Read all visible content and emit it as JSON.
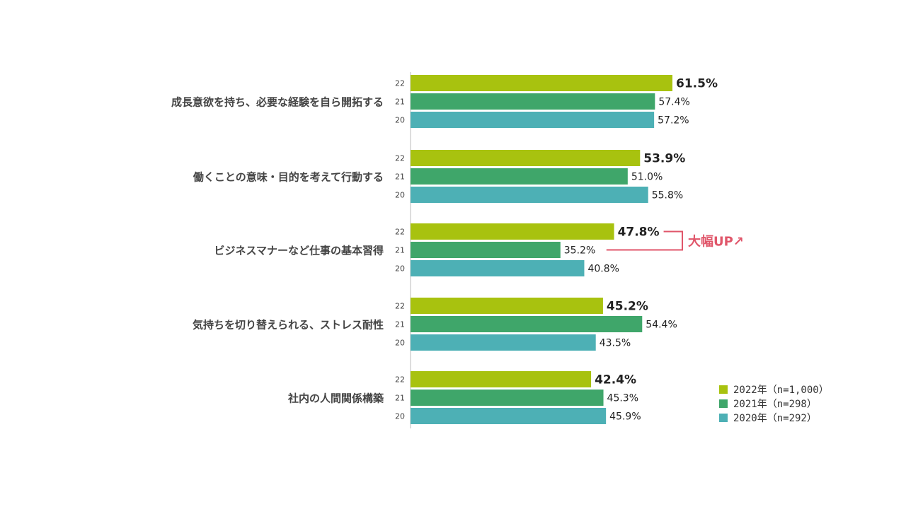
{
  "chart_data": {
    "type": "bar",
    "orientation": "horizontal",
    "categories": [
      "成長意欲を持ち、必要な経験を自ら開拓する",
      "働くことの意味・目的を考えて行動する",
      "ビジネスマナーなど仕事の基本習得",
      "気持ちを切り替えられる、ストレス耐性",
      "社内の人間関係構築"
    ],
    "series": [
      {
        "name": "2022年（n=1,000）",
        "year_label": "22",
        "color": "#a8c20f",
        "values": [
          61.5,
          53.9,
          47.8,
          45.2,
          42.4
        ]
      },
      {
        "name": "2021年（n=298）",
        "year_label": "21",
        "color": "#3fa66a",
        "values": [
          57.4,
          51.0,
          35.2,
          54.4,
          45.3
        ]
      },
      {
        "name": "2020年（n=292）",
        "year_label": "20",
        "color": "#4db0b5",
        "values": [
          57.2,
          55.8,
          40.8,
          43.5,
          45.9
        ]
      }
    ],
    "xlim": [
      0,
      61.5
    ],
    "legend_position": "bottom-right",
    "annotation": {
      "text": "大幅UP↗",
      "category_index": 2,
      "color": "#e0566a"
    }
  }
}
